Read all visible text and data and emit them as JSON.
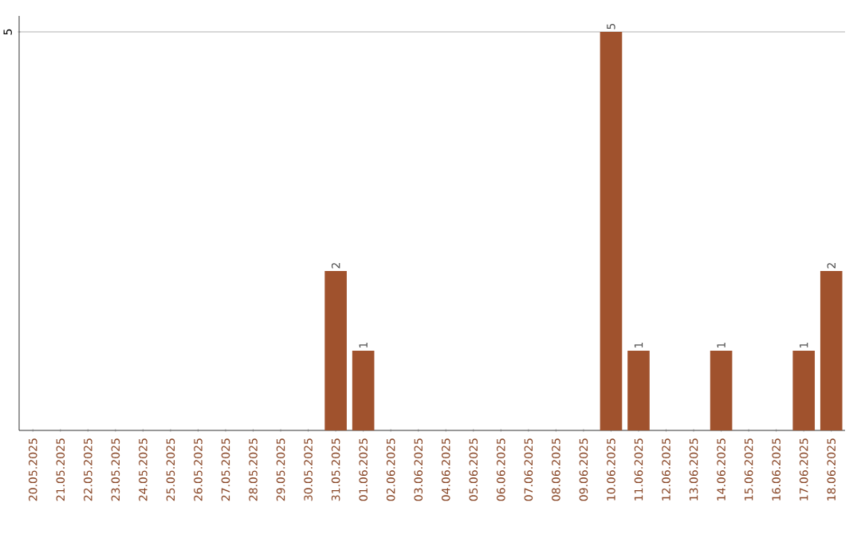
{
  "chart_data": {
    "type": "bar",
    "categories": [
      "20.05.2025",
      "21.05.2025",
      "22.05.2025",
      "23.05.2025",
      "24.05.2025",
      "25.05.2025",
      "26.05.2025",
      "27.05.2025",
      "28.05.2025",
      "29.05.2025",
      "30.05.2025",
      "31.05.2025",
      "01.06.2025",
      "02.06.2025",
      "03.06.2025",
      "04.06.2025",
      "05.06.2025",
      "06.06.2025",
      "07.06.2025",
      "08.06.2025",
      "09.06.2025",
      "10.06.2025",
      "11.06.2025",
      "12.06.2025",
      "13.06.2025",
      "14.06.2025",
      "15.06.2025",
      "16.06.2025",
      "17.06.2025",
      "18.06.2025"
    ],
    "values": [
      0,
      0,
      0,
      0,
      0,
      0,
      0,
      0,
      0,
      0,
      0,
      2,
      1,
      0,
      0,
      0,
      0,
      0,
      0,
      0,
      0,
      5,
      1,
      0,
      0,
      1,
      0,
      0,
      1,
      2
    ],
    "value_labels": [
      null,
      null,
      null,
      null,
      null,
      null,
      null,
      null,
      null,
      null,
      null,
      "2",
      "1",
      null,
      null,
      null,
      null,
      null,
      null,
      null,
      null,
      "5",
      "1",
      null,
      null,
      "1",
      null,
      null,
      "1",
      "2"
    ],
    "color": "#a0522d",
    "ylim": [
      0,
      5.2
    ],
    "yticks": [
      5
    ],
    "grid": "y"
  }
}
